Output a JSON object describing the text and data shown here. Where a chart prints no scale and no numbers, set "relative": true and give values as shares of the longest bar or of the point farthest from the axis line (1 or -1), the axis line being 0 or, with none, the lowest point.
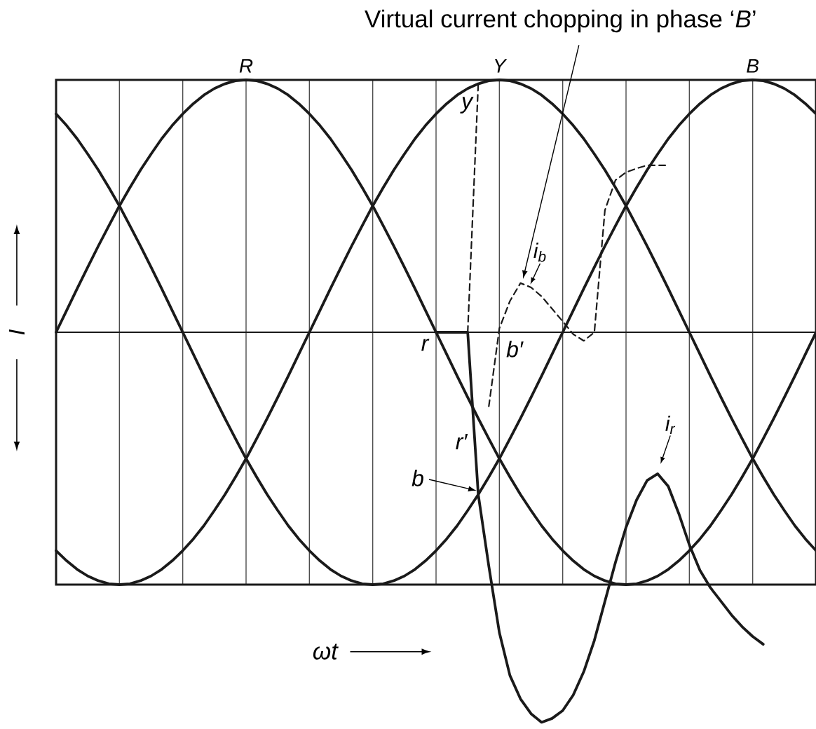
{
  "chart_data": {
    "type": "line",
    "relative": true,
    "xlabel": "ωt",
    "ylabel": "I",
    "grid": "x",
    "categories": [
      null,
      null,
      null,
      null,
      null,
      null,
      null,
      null,
      null,
      null,
      null,
      null,
      null,
      null,
      null,
      null,
      null,
      null,
      null,
      null,
      null,
      null,
      null,
      null,
      null,
      null,
      null,
      null,
      null,
      null,
      null,
      null,
      null,
      null,
      null,
      null,
      null,
      null,
      null,
      null,
      null,
      null,
      null,
      null,
      null,
      null,
      null,
      null,
      null,
      null,
      null,
      null,
      null,
      null,
      null,
      null,
      null,
      null,
      null,
      null,
      null,
      null,
      null,
      null,
      null,
      null,
      null,
      null,
      null,
      null,
      null,
      null,
      null
    ],
    "series": [
      {
        "name": "R",
        "color": "#1a1a1a",
        "values": [
          0,
          0.056,
          0.112,
          0.167,
          0.221,
          0.273,
          0.324,
          0.371,
          0.416,
          0.457,
          0.496,
          0.53,
          0.56,
          0.586,
          0.608,
          0.625,
          0.637,
          0.645,
          0.647,
          0.645,
          0.637,
          0.625,
          0.608,
          0.586,
          0.56,
          0.53,
          0.496,
          0.457,
          0.416,
          0.371,
          0.324,
          0.273,
          0.221,
          0.167,
          0.112,
          0.056,
          0,
          -0.056,
          -0.112,
          -0.167,
          -0.221,
          -0.273,
          -0.324,
          -0.371,
          -0.416,
          -0.457,
          -0.496,
          -0.53,
          -0.56,
          -0.586,
          -0.608,
          -0.625,
          -0.637,
          -0.645,
          -0.647,
          -0.645,
          -0.637,
          -0.625,
          -0.608,
          -0.586,
          -0.56,
          -0.53,
          -0.496,
          -0.457,
          -0.416,
          -0.371,
          -0.324,
          -0.273,
          -0.221,
          -0.167,
          -0.112,
          -0.056,
          0
        ]
      },
      {
        "name": "Y",
        "color": "#1a1a1a",
        "values": [
          -0.56,
          -0.586,
          -0.608,
          -0.625,
          -0.637,
          -0.645,
          -0.647,
          -0.645,
          -0.637,
          -0.625,
          -0.608,
          -0.586,
          -0.56,
          -0.53,
          -0.496,
          -0.457,
          -0.416,
          -0.371,
          -0.324,
          -0.273,
          -0.221,
          -0.167,
          -0.112,
          -0.056,
          0,
          0.056,
          0.112,
          0.167,
          0.221,
          0.273,
          0.324,
          0.371,
          0.416,
          0.457,
          0.496,
          0.53,
          0.56,
          0.586,
          0.608,
          0.625,
          0.637,
          0.645,
          0.647,
          0.645,
          0.637,
          0.625,
          0.608,
          0.586,
          0.56,
          0.53,
          0.496,
          0.457,
          0.416,
          0.371,
          0.324,
          0.273,
          0.221,
          0.167,
          0.112,
          0.056,
          0,
          -0.056,
          -0.112,
          -0.167,
          -0.221,
          -0.273,
          -0.324,
          -0.371,
          -0.416,
          -0.457,
          -0.496,
          -0.53,
          -0.56
        ]
      },
      {
        "name": "B",
        "color": "#1a1a1a",
        "values": [
          0.56,
          0.53,
          0.496,
          0.457,
          0.416,
          0.371,
          0.324,
          0.273,
          0.221,
          0.167,
          0.112,
          0.056,
          0,
          -0.056,
          -0.112,
          -0.167,
          -0.221,
          -0.273,
          -0.324,
          -0.371,
          -0.416,
          -0.457,
          -0.496,
          -0.53,
          -0.56,
          -0.586,
          -0.608,
          -0.625,
          -0.637,
          -0.645,
          -0.647,
          -0.645,
          -0.637,
          -0.625,
          -0.608,
          -0.586,
          -0.56,
          -0.53,
          -0.496,
          -0.457,
          -0.416,
          -0.371,
          -0.324,
          -0.273,
          -0.221,
          -0.167,
          -0.112,
          -0.056,
          0,
          0.056,
          0.112,
          0.167,
          0.221,
          0.273,
          0.324,
          0.371,
          0.416,
          0.457,
          0.496,
          0.53,
          0.56,
          0.586,
          0.608,
          0.625,
          0.637,
          0.645,
          0.647,
          0.645,
          0.637,
          0.625,
          0.608,
          0.586,
          0.56
        ]
      },
      {
        "color": "#1a1a1a",
        "line_style": "dashed",
        "values": [
          null,
          null,
          null,
          null,
          null,
          null,
          null,
          null,
          null,
          null,
          null,
          null,
          null,
          null,
          null,
          null,
          null,
          null,
          null,
          null,
          null,
          null,
          null,
          null,
          null,
          null,
          null,
          null,
          null,
          null,
          null,
          null,
          null,
          null,
          null,
          null,
          null,
          null,
          null,
          0,
          0.637,
          null,
          null,
          null,
          null,
          null,
          null,
          null,
          null,
          null,
          null,
          null,
          null,
          null,
          null,
          null,
          null,
          null,
          null,
          null,
          null,
          null,
          null,
          null,
          null,
          null,
          null,
          null,
          null,
          null,
          null,
          null,
          null
        ]
      },
      {
        "name": "i$_{b}$",
        "color": "#1a1a1a",
        "line_style": "dashed",
        "values": [
          null,
          null,
          null,
          null,
          null,
          null,
          null,
          null,
          null,
          null,
          null,
          null,
          null,
          null,
          null,
          null,
          null,
          null,
          null,
          null,
          null,
          null,
          null,
          null,
          null,
          null,
          null,
          null,
          null,
          null,
          null,
          null,
          null,
          null,
          null,
          null,
          null,
          null,
          null,
          null,
          null,
          -0.19,
          0.01,
          0.08,
          0.126,
          0.115,
          0.092,
          0.06,
          0.028,
          -0.005,
          -0.022,
          0,
          0.313,
          0.39,
          0.41,
          0.42,
          0.428,
          0.428,
          0.428,
          null,
          null,
          null,
          null,
          null,
          null,
          null,
          null,
          null,
          null,
          null,
          null,
          null,
          null
        ]
      },
      {
        "name": "i$_{r}$",
        "color": "#1a1a1a",
        "values": [
          null,
          null,
          null,
          null,
          null,
          null,
          null,
          null,
          null,
          null,
          null,
          null,
          null,
          null,
          null,
          null,
          null,
          null,
          null,
          null,
          null,
          null,
          null,
          null,
          null,
          null,
          null,
          null,
          null,
          null,
          null,
          null,
          null,
          null,
          null,
          null,
          0,
          0,
          0,
          0,
          -0.416,
          -0.6,
          -0.77,
          -0.88,
          -0.94,
          -0.978,
          -1,
          -0.99,
          -0.97,
          -0.93,
          -0.87,
          -0.79,
          -0.69,
          -0.59,
          -0.5,
          -0.43,
          -0.38,
          -0.363,
          -0.395,
          -0.465,
          -0.545,
          -0.61,
          -0.655,
          -0.69,
          -0.725,
          -0.755,
          -0.78,
          -0.8,
          null,
          null,
          null,
          null,
          null
        ]
      }
    ],
    "annotations": [
      "Virtual current chopping in phase ‘*B*’",
      "y",
      "r",
      "b′",
      "r′",
      "b"
    ]
  }
}
